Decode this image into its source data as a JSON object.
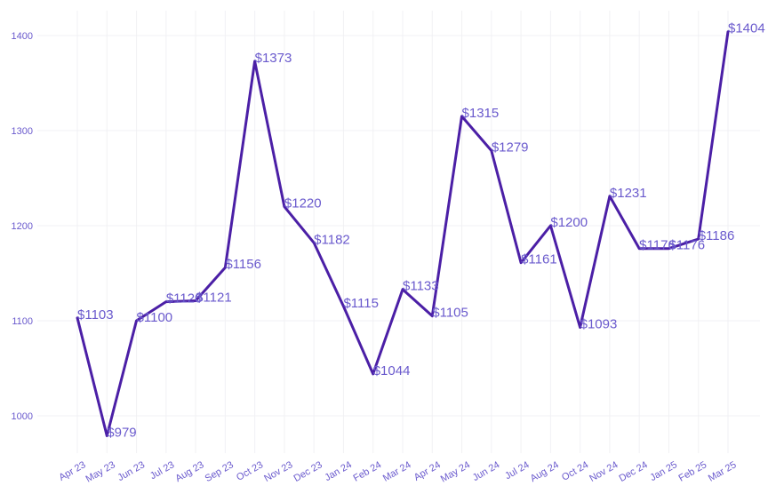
{
  "chart_data": {
    "type": "line",
    "categories": [
      "Apr 23",
      "May 23",
      "Jun 23",
      "Jul 23",
      "Aug 23",
      "Sep 23",
      "Oct 23",
      "Nov 23",
      "Dec 23",
      "Jan 24",
      "Feb 24",
      "Mar 24",
      "Apr 24",
      "May 24",
      "Jun 24",
      "Jul 24",
      "Aug 24",
      "Oct 24",
      "Nov 24",
      "Dec 24",
      "Jan 25",
      "Feb 25",
      "Mar 25"
    ],
    "values": [
      1103,
      979,
      1100,
      1120,
      1121,
      1156,
      1373,
      1220,
      1182,
      1115,
      1044,
      1133,
      1105,
      1315,
      1279,
      1161,
      1200,
      1093,
      1231,
      1176,
      1176,
      1186,
      1404
    ],
    "data_labels": [
      "$1103",
      "$979",
      "$1100",
      "$1120",
      "$1121",
      "$1156",
      "$1373",
      "$1220",
      "$1182",
      "$1115",
      "$1044",
      "$1133",
      "$1105",
      "$1315",
      "$1279",
      "$1161",
      "$1200",
      "$1093",
      "$1231",
      "$1176",
      "$1176",
      "$1186",
      "$1404"
    ],
    "y_ticks": [
      1000,
      1100,
      1200,
      1300,
      1400
    ],
    "ylim": [
      950,
      1425
    ],
    "grid": true,
    "line_color": "#4b1fa6",
    "text_color": "#6a5acd"
  }
}
